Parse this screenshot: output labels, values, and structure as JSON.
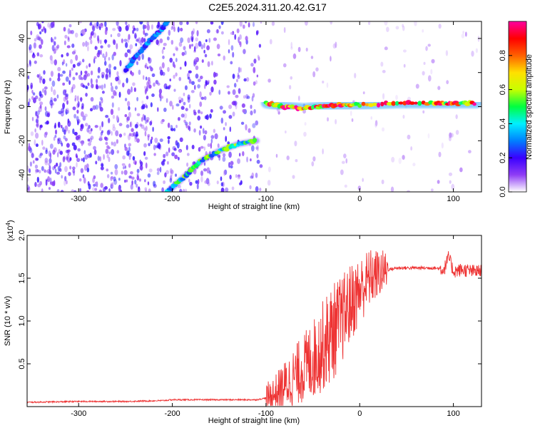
{
  "title": "C2E5.2024.311.20.42.G17",
  "colors": {
    "snr_line": "#ee3333",
    "spectrogram_low": "#9a5cf0",
    "spectrogram_high": "#ff0000"
  },
  "chart_data": [
    {
      "type": "heatmap",
      "title": "C2E5.2024.311.20.42.G17",
      "xlabel": "Height of straight line (km)",
      "ylabel": "Frequency (Hz)",
      "xlim": [
        -355,
        130
      ],
      "ylim": [
        -50,
        50
      ],
      "xticks": [
        -300,
        -200,
        -100,
        0,
        100
      ],
      "yticks": [
        -40,
        -20,
        0,
        20,
        40
      ],
      "colorbar": {
        "label": "Normalized spectral amplitude",
        "range": [
          0,
          1
        ],
        "ticks": [
          0.0,
          0.2,
          0.4,
          0.6,
          0.8
        ],
        "tick_labels": [
          "0.0",
          "0.2",
          "0.4",
          "0.6",
          "0.8"
        ],
        "colormap": [
          "#ffffff",
          "#8f3df5",
          "#3a00ff",
          "#0080ff",
          "#00f0ff",
          "#00ff40",
          "#c8ff00",
          "#ffe000",
          "#ff6000",
          "#ff0000",
          "#ff00a0"
        ]
      },
      "features": [
        {
          "name": "",
          "x": [
            -250,
            -238,
            -225,
            -212,
            -205
          ],
          "y": [
            21,
            30,
            38,
            45,
            50
          ],
          "amplitude": 0.3
        },
        {
          "name": "",
          "x": [
            -205,
            -185,
            -170,
            -150,
            -130,
            -110
          ],
          "y": [
            -50,
            -40,
            -32,
            -26,
            -22,
            -20
          ],
          "amplitude": 0.5
        },
        {
          "name": "",
          "x": [
            -100,
            -80,
            -60,
            -40,
            -20,
            0,
            40,
            80,
            100,
            125
          ],
          "y": [
            2,
            0,
            -1,
            0,
            1,
            1,
            2,
            2,
            2,
            2
          ],
          "amplitude": 0.9
        }
      ]
    },
    {
      "type": "line",
      "title": "",
      "xlabel": "Height of straight line (km)",
      "ylabel": "SNR (10 * v/v)",
      "y_multiplier": "(x10^4)",
      "y_multiplier_base": "(x10",
      "y_multiplier_exp": "4",
      "y_multiplier_close": ")",
      "xlim": [
        -355,
        130
      ],
      "ylim": [
        0,
        2.0
      ],
      "xticks": [
        -300,
        -200,
        -100,
        0,
        100
      ],
      "yticks": [
        0.5,
        1.0,
        1.5,
        2.0
      ],
      "ytick_labels": [
        "0.5",
        "1.0",
        "1.5",
        "2.0"
      ],
      "series": [
        {
          "name": "",
          "x": [
            -355,
            -300,
            -250,
            -210,
            -200,
            -150,
            -110,
            -100,
            -90,
            -80,
            -70,
            -60,
            -50,
            -40,
            -30,
            -20,
            -10,
            0,
            10,
            20,
            30,
            40,
            50,
            60,
            70,
            80,
            90,
            95,
            100,
            110,
            120,
            130
          ],
          "y": [
            0.05,
            0.06,
            0.06,
            0.07,
            0.08,
            0.08,
            0.08,
            0.1,
            0.15,
            0.25,
            0.35,
            0.45,
            0.55,
            0.7,
            0.85,
            1.0,
            1.2,
            1.35,
            1.5,
            1.55,
            1.6,
            1.62,
            1.62,
            1.62,
            1.62,
            1.62,
            1.6,
            1.75,
            1.58,
            1.6,
            1.58,
            1.58
          ]
        }
      ]
    }
  ]
}
